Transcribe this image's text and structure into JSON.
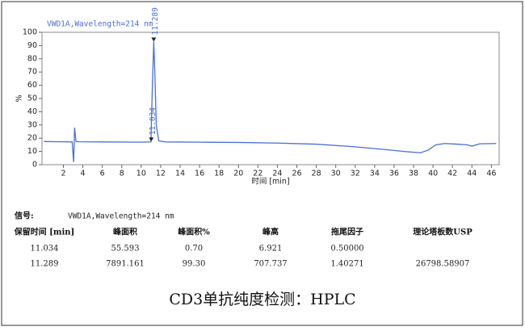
{
  "chart_data": {
    "type": "line",
    "title": "VWD1A,Wavelength=214 nm",
    "x_label": "时间 [min]",
    "y_label": "%",
    "x": [
      0,
      2,
      2.9,
      3.05,
      3.15,
      3.3,
      3.6,
      6,
      10,
      11.0,
      11.15,
      11.289,
      11.4,
      11.55,
      11.8,
      12.5,
      16,
      20,
      24,
      28,
      32,
      35,
      37,
      38.7,
      39.5,
      40.3,
      41.2,
      42.5,
      43.5,
      44,
      44.8,
      46.5
    ],
    "series": [
      {
        "color": "#4a6fd6",
        "values": [
          17.5,
          17.3,
          17.2,
          2,
          28,
          17.5,
          17.3,
          17.2,
          17.0,
          17.2,
          60,
          93,
          70,
          30,
          18,
          17.2,
          17,
          16.8,
          16.3,
          15.5,
          13.5,
          11.5,
          10,
          9,
          11,
          15,
          16,
          15.5,
          15,
          14,
          15.8,
          16
        ]
      }
    ],
    "annotations": [
      {
        "text": "11.034",
        "x": 11.034,
        "y": 17.5
      },
      {
        "text": "11.289",
        "x": 11.289,
        "y": 93
      }
    ],
    "xlim": [
      -0.2,
      46.8
    ],
    "ylim": [
      0,
      100
    ],
    "xticks": [
      2,
      4,
      6,
      8,
      10,
      12,
      14,
      16,
      18,
      20,
      22,
      24,
      26,
      28,
      30,
      32,
      34,
      36,
      38,
      40,
      42,
      44,
      46
    ],
    "yticks": [
      0,
      10,
      20,
      30,
      40,
      50,
      60,
      70,
      80,
      90,
      100
    ]
  },
  "signal": {
    "label": "信号:",
    "value": "VWD1A,Wavelength=214 nm"
  },
  "table": {
    "headers": [
      "保留时间 [min]",
      "峰面积",
      "峰面积%",
      "峰高",
      "拖尾因子",
      "理论塔板数USP"
    ],
    "rows": [
      [
        "11.034",
        "55.593",
        "0.70",
        "6.921",
        "0.50000",
        null
      ],
      [
        "11.289",
        "7891.161",
        "99.30",
        "707.737",
        "1.40271",
        "26798.58907"
      ]
    ]
  },
  "caption": "CD3单抗纯度检测：HPLC"
}
